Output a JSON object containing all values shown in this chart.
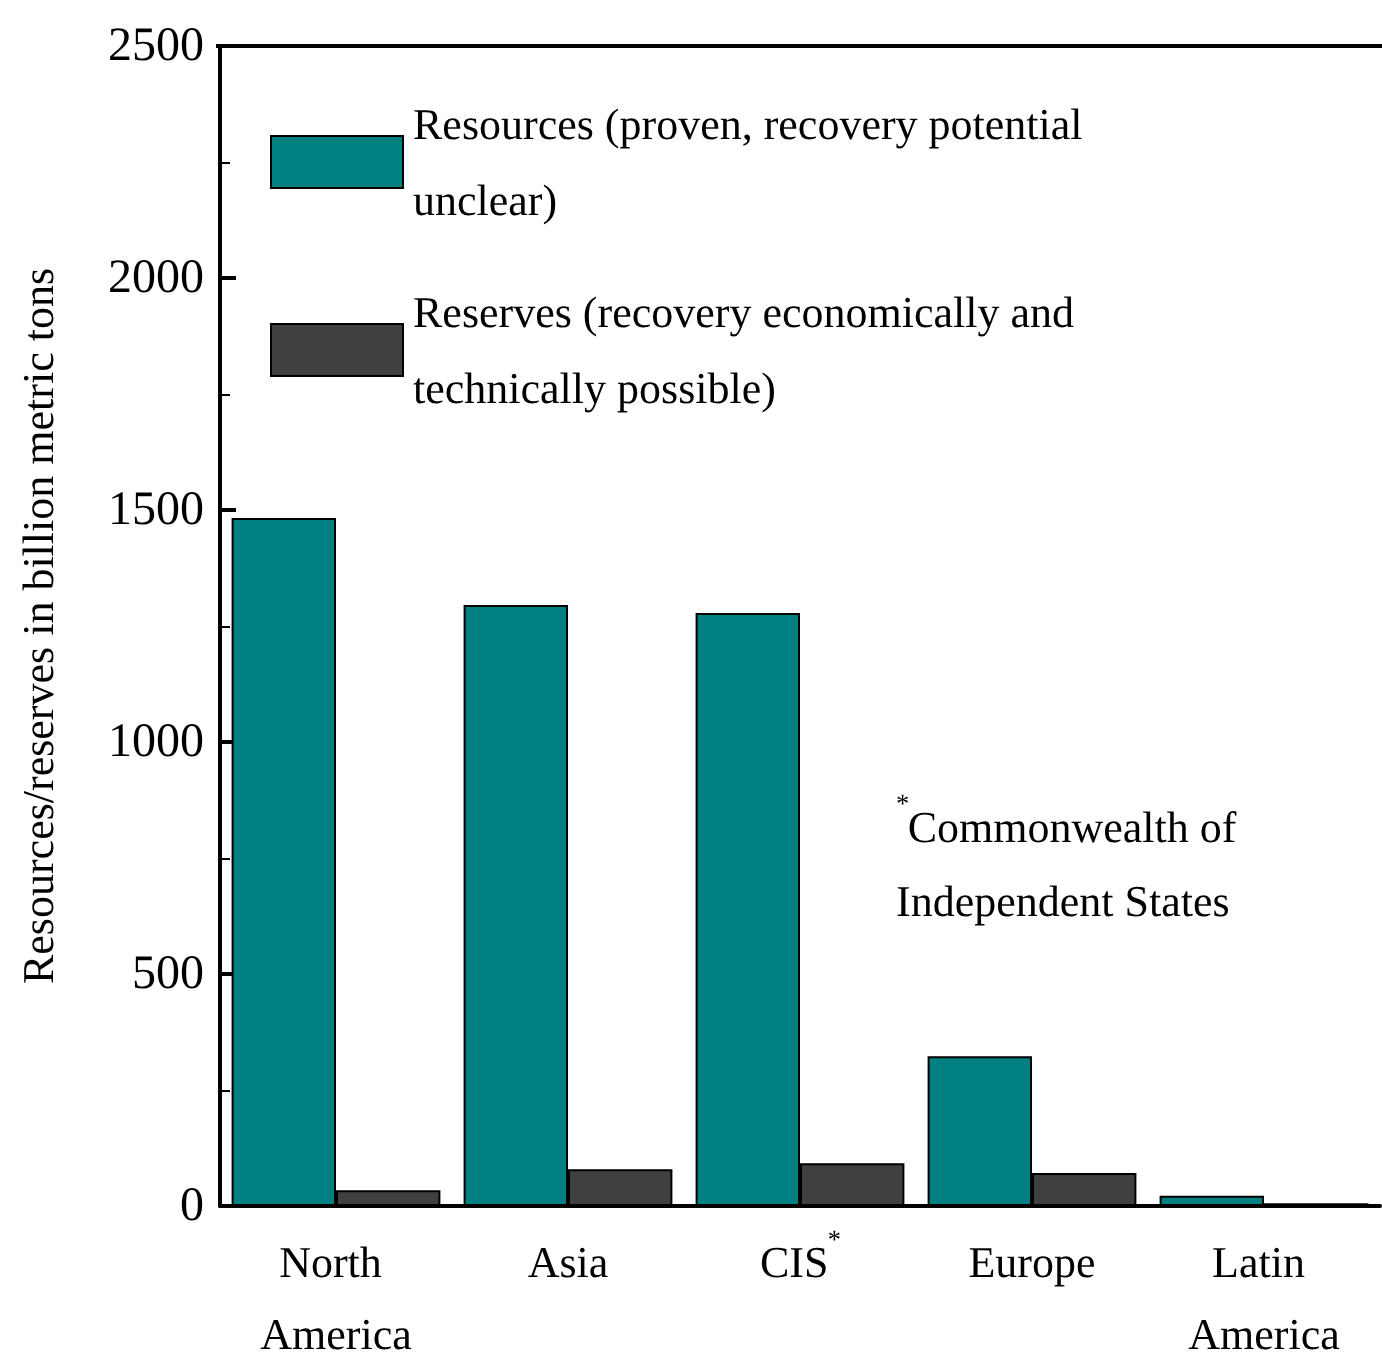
{
  "chart_data": {
    "type": "bar",
    "ylabel": "Resources/reserves in billion metric tons",
    "categories": [
      "North America",
      "Asia",
      "CIS$^{*}$",
      "Europe",
      "Latin America"
    ],
    "series": [
      {
        "name": "Resources (proven, recovery potential unclear)",
        "color": "#008080",
        "values": [
          1483,
          1295,
          1278,
          323,
          22
        ]
      },
      {
        "name": "Reserves (recovery economically and technically possible)",
        "color": "#404040",
        "values": [
          34,
          79,
          92,
          71,
          6
        ]
      }
    ],
    "ylim": [
      0,
      2500
    ],
    "yticks": [
      0,
      500,
      1000,
      1500,
      2000,
      2500
    ],
    "annotations": [
      "$^{*}$Commonwealth of Independent States"
    ],
    "grid": false,
    "legend": "top left"
  }
}
